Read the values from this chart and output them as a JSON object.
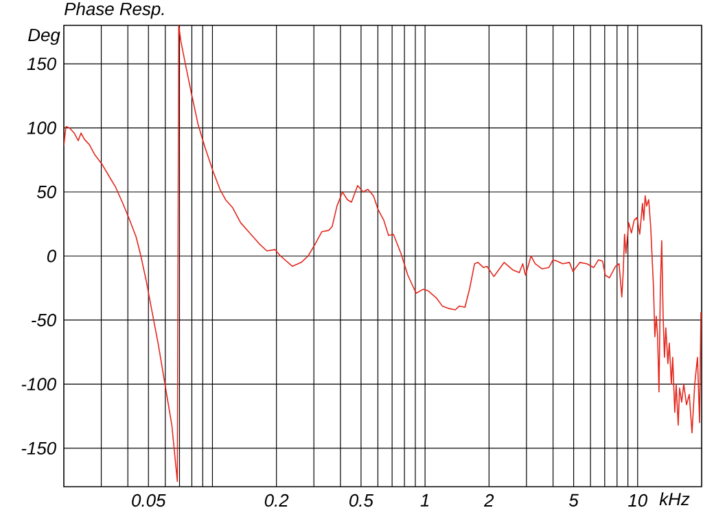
{
  "chart_data": {
    "type": "line",
    "title": "Phase Resp.",
    "xlabel": "kHz",
    "ylabel": "Deg",
    "log": "x",
    "grid": true,
    "marker": "none",
    "line_style": "solid",
    "xlim": [
      0.02,
      20
    ],
    "ylim": [
      -180,
      180
    ],
    "xticks": [
      {
        "value": 0.03,
        "label": null
      },
      {
        "value": 0.04,
        "label": null
      },
      0.05,
      {
        "value": 0.06,
        "label": null
      },
      {
        "value": 0.07,
        "label": null
      },
      {
        "value": 0.08,
        "label": null
      },
      {
        "value": 0.09,
        "label": null
      },
      {
        "value": 0.1,
        "label": null
      },
      0.2,
      {
        "value": 0.3,
        "label": null
      },
      {
        "value": 0.4,
        "label": null
      },
      0.5,
      {
        "value": 0.6,
        "label": null
      },
      {
        "value": 0.7,
        "label": null
      },
      {
        "value": 0.8,
        "label": null
      },
      {
        "value": 0.9,
        "label": null
      },
      1,
      2,
      {
        "value": 3,
        "label": null
      },
      {
        "value": 4,
        "label": null
      },
      5,
      {
        "value": 6,
        "label": null
      },
      {
        "value": 7,
        "label": null
      },
      {
        "value": 8,
        "label": null
      },
      {
        "value": 9,
        "label": null
      },
      10
    ],
    "yticks": [
      -150,
      -100,
      -50,
      0,
      50,
      100,
      150
    ],
    "x": [
      0.02,
      0.02046,
      0.02123,
      0.02236,
      0.02338,
      0.02409,
      0.025,
      0.02635,
      0.02797,
      0.03013,
      0.03245,
      0.03497,
      0.03768,
      0.04059,
      0.04373,
      0.04607,
      0.04891,
      0.05152,
      0.0555,
      0.05979,
      0.06442,
      0.06839,
      0.0694,
      0.07097,
      0.07477,
      0.07937,
      0.08551,
      0.09213,
      0.1007,
      0.1085,
      0.1152,
      0.1241,
      0.1357,
      0.1496,
      0.1673,
      0.1802,
      0.197,
      0.2091,
      0.2374,
      0.2616,
      0.2818,
      0.3035,
      0.327,
      0.3523,
      0.3657,
      0.3852,
      0.409,
      0.4309,
      0.4506,
      0.4818,
      0.5114,
      0.5387,
      0.572,
      0.6024,
      0.6394,
      0.6737,
      0.7098,
      0.7706,
      0.83,
      0.9077,
      0.9779,
      1.03,
      1.135,
      1.205,
      1.298,
      1.388,
      1.451,
      1.541,
      1.623,
      1.71,
      1.775,
      1.884,
      1.956,
      2.107,
      2.356,
      2.596,
      2.776,
      2.881,
      2.969,
      3.151,
      3.295,
      3.549,
      3.823,
      3.998,
      4.181,
      4.438,
      4.782,
      4.964,
      5.348,
      5.762,
      6.209,
      6.54,
      6.839,
      7.046,
      7.368,
      7.877,
      8.177,
      8.425,
      8.551,
      8.679,
      8.81,
      9.076,
      9.352,
      9.634,
      9.926,
      10.23,
      10.54,
      10.69,
      10.85,
      11.02,
      11.27,
      11.52,
      11.87,
      12.05,
      12.23,
      12.41,
      12.6,
      12.79,
      12.98,
      13.18,
      13.37,
      13.57,
      13.88,
      14.09,
      14.41,
      14.62,
      14.95,
      15.18,
      15.52,
      15.75,
      16.11,
      16.48,
      16.98,
      17.49,
      18.02,
      18.56,
      19.12,
      19.56,
      19.85,
      20
    ],
    "series": [
      {
        "color": "#e3261c",
        "values": [
          86,
          101,
          100,
          96,
          90,
          96,
          91,
          87,
          79,
          72,
          63,
          54,
          42,
          29,
          15,
          0,
          -20,
          -40,
          -68,
          -100,
          -132,
          -176,
          180,
          168,
          149,
          128,
          103,
          85,
          66,
          52,
          44,
          38,
          26,
          18,
          9,
          4,
          5,
          0,
          -8,
          -5,
          0,
          9,
          19,
          20,
          23,
          39,
          50,
          44,
          42,
          55,
          50,
          52,
          47,
          36,
          28,
          16,
          17,
          2,
          -15,
          -29,
          -26,
          -27,
          -33,
          -39,
          -41,
          -42,
          -39,
          -40,
          -25,
          -6,
          -5,
          -9,
          -8,
          -16,
          -5,
          -11,
          -13,
          -6,
          -15,
          0,
          -6,
          -10,
          -9,
          -3,
          -4,
          -6,
          -5,
          -12,
          -5,
          -6,
          -9,
          -3,
          -4,
          -15,
          -17,
          -8,
          -6,
          -32,
          -13,
          17,
          2,
          26,
          18,
          28,
          30,
          17,
          41,
          28,
          47,
          39,
          44,
          23,
          -24,
          -63,
          -47,
          -62,
          -106,
          -25,
          12,
          -47,
          -79,
          -56,
          -84,
          -68,
          -100,
          -79,
          -122,
          -100,
          -132,
          -103,
          -114,
          -100,
          -116,
          -108,
          -138,
          -100,
          -79,
          -130,
          -44,
          -49
        ]
      }
    ]
  }
}
